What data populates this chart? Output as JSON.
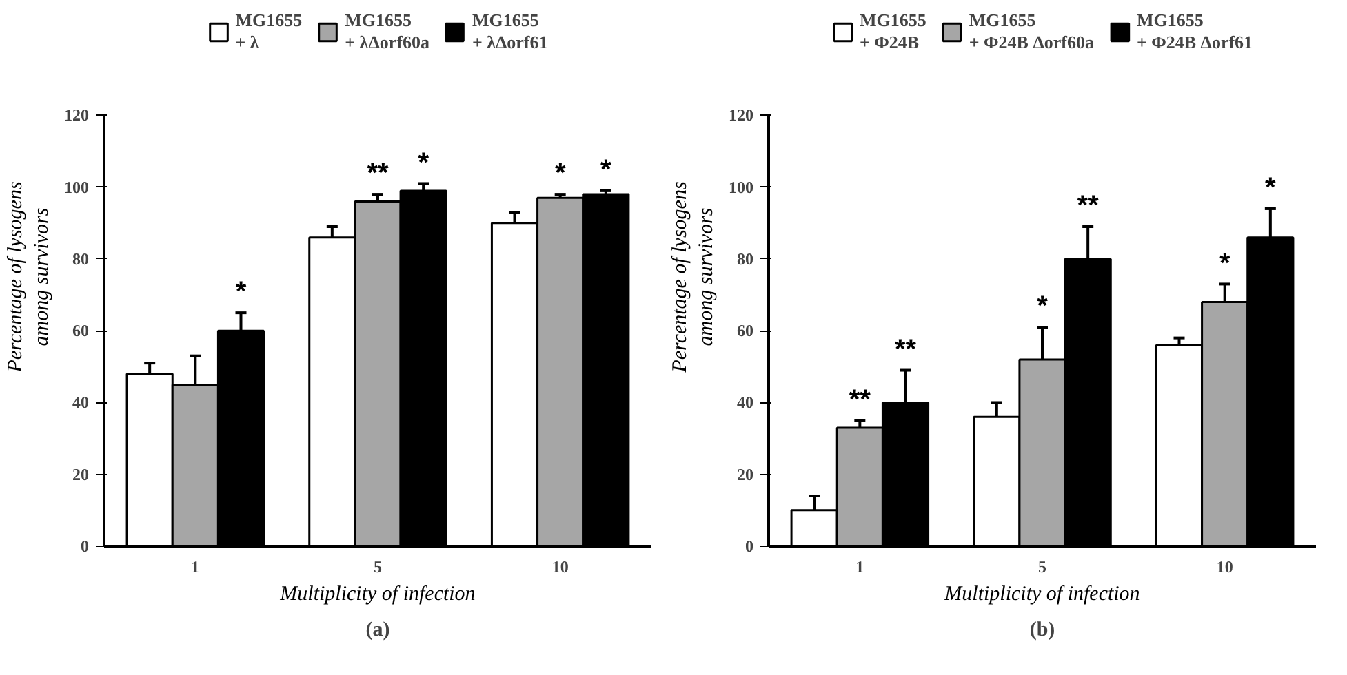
{
  "chart_data": [
    {
      "type": "bar",
      "categories": [
        "1",
        "5",
        "10"
      ],
      "xlabel": "Multiplicity of infection",
      "ylabel": "Percentage of lysogens\namong survivors",
      "ylim": [
        0,
        120
      ],
      "yticks": [
        0,
        20,
        40,
        60,
        80,
        100,
        120
      ],
      "grid": false,
      "legend": "top",
      "annotations": [
        "(a)"
      ],
      "series": [
        {
          "name": "MG1655\n+ λ",
          "color": "#ffffff",
          "values": [
            48,
            86,
            90
          ],
          "errors": [
            3,
            3,
            3
          ],
          "value_labels": [
            null,
            null,
            null
          ]
        },
        {
          "name": "MG1655\n+ λΔorf60a",
          "color": "#a6a6a6",
          "values": [
            45,
            96,
            97
          ],
          "errors": [
            8,
            2,
            1
          ],
          "value_labels": [
            null,
            "**",
            "*"
          ]
        },
        {
          "name": "MG1655\n+ λΔorf61",
          "color": "#000000",
          "values": [
            60,
            99,
            98
          ],
          "errors": [
            5,
            2,
            1
          ],
          "value_labels": [
            "*",
            "*",
            "*"
          ]
        }
      ]
    },
    {
      "type": "bar",
      "categories": [
        "1",
        "5",
        "10"
      ],
      "xlabel": "Multiplicity of infection",
      "ylabel": "Percentage of lysogens\namong survivors",
      "ylim": [
        0,
        120
      ],
      "yticks": [
        0,
        20,
        40,
        60,
        80,
        100,
        120
      ],
      "grid": false,
      "legend": "top",
      "annotations": [
        "(b)"
      ],
      "series": [
        {
          "name": "MG1655\n+ Φ24B",
          "color": "#ffffff",
          "values": [
            10,
            36,
            56
          ],
          "errors": [
            4,
            4,
            2
          ],
          "value_labels": [
            null,
            null,
            null
          ]
        },
        {
          "name": "MG1655\n+ Φ24B Δorf60a",
          "color": "#a6a6a6",
          "values": [
            33,
            52,
            68
          ],
          "errors": [
            2,
            9,
            5
          ],
          "value_labels": [
            "**",
            "*",
            "*"
          ]
        },
        {
          "name": "MG1655\n+ Φ24B Δorf61",
          "color": "#000000",
          "values": [
            40,
            80,
            86
          ],
          "errors": [
            9,
            9,
            8
          ],
          "value_labels": [
            "**",
            "**",
            "*"
          ]
        }
      ]
    }
  ]
}
